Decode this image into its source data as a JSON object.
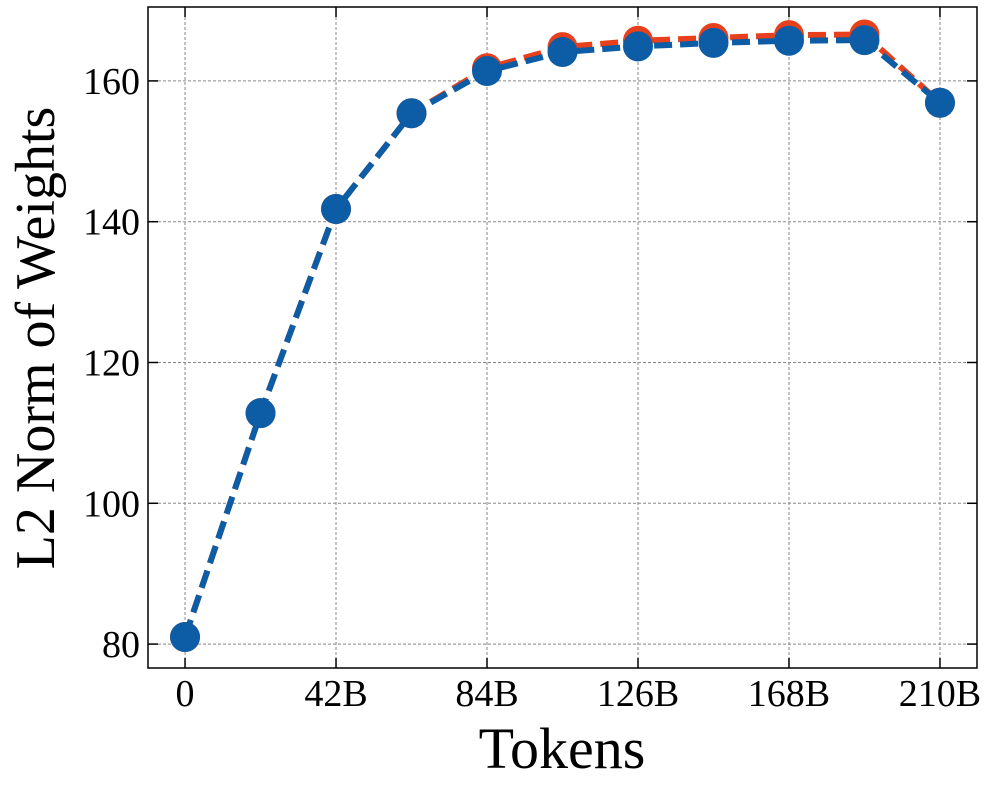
{
  "chart_data": {
    "type": "line",
    "x_label": "Tokens",
    "y_label": "L2 Norm of Weights",
    "x": [
      0,
      21,
      42,
      63,
      84,
      105,
      126,
      147,
      168,
      189,
      210
    ],
    "series": [
      {
        "color": "#e8401c",
        "values": [
          81.0,
          112.8,
          141.8,
          155.4,
          161.8,
          164.8,
          165.7,
          166.1,
          166.5,
          166.6,
          156.9
        ]
      },
      {
        "color": "#0c5da5",
        "values": [
          81.0,
          112.8,
          141.8,
          155.4,
          161.4,
          164.1,
          164.9,
          165.4,
          165.7,
          165.8,
          156.9
        ]
      }
    ],
    "xlim": [
      -10.3,
      220.3
    ],
    "ylim": [
      76.6,
      170.5
    ],
    "xticks": [
      0,
      {
        "value": 42,
        "label": "42B"
      },
      {
        "value": 84,
        "label": "84B"
      },
      {
        "value": 126,
        "label": "126B"
      },
      {
        "value": 168,
        "label": "168B"
      },
      {
        "value": 210,
        "label": "210B"
      }
    ],
    "yticks": [
      80,
      100,
      120,
      140,
      160
    ],
    "grid": true
  }
}
